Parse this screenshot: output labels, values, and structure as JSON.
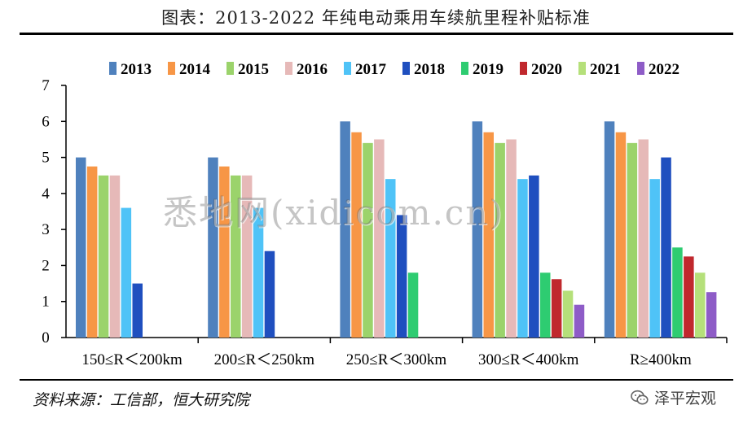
{
  "header": {
    "title": "图表：2013-2022 年纯电动乘用车续航里程补贴标准"
  },
  "footer": {
    "source": "资料来源：工信部，恒大研究院",
    "brand": "泽平宏观",
    "brand_icon": "wechat-icon"
  },
  "watermark": "悉地网(xidicom.cn)",
  "chart_data": {
    "type": "bar",
    "title": "图表：2013-2022 年纯电动乘用车续航里程补贴标准",
    "xlabel": "",
    "ylabel": "",
    "ylim": [
      0,
      7
    ],
    "yticks": [
      "0",
      "1",
      "2",
      "3",
      "4",
      "5",
      "6",
      "7"
    ],
    "grid": false,
    "legend_position": "top",
    "categories": [
      "150≤R＜200km",
      "200≤R＜250km",
      "250≤R＜300km",
      "300≤R＜400km",
      "R≥400km"
    ],
    "series": [
      {
        "name": "2013",
        "color": "#4f81bd",
        "values": [
          5,
          5,
          6,
          6,
          6
        ]
      },
      {
        "name": "2014",
        "color": "#f79646",
        "values": [
          4.75,
          4.75,
          5.7,
          5.7,
          5.7
        ]
      },
      {
        "name": "2015",
        "color": "#9bd36b",
        "values": [
          4.5,
          4.5,
          5.4,
          5.4,
          5.4
        ]
      },
      {
        "name": "2016",
        "color": "#e6b9b8",
        "values": [
          4.5,
          4.5,
          5.5,
          5.5,
          5.5
        ]
      },
      {
        "name": "2017",
        "color": "#4fc3f7",
        "values": [
          3.6,
          3.6,
          4.4,
          4.4,
          4.4
        ]
      },
      {
        "name": "2018",
        "color": "#1f4fbf",
        "values": [
          1.5,
          2.4,
          3.4,
          4.5,
          5
        ]
      },
      {
        "name": "2019",
        "color": "#2ecc71",
        "values": [
          null,
          null,
          1.8,
          1.8,
          2.5
        ]
      },
      {
        "name": "2020",
        "color": "#c0282d",
        "values": [
          null,
          null,
          null,
          1.62,
          2.25
        ]
      },
      {
        "name": "2021",
        "color": "#b5e07a",
        "values": [
          null,
          null,
          null,
          1.3,
          1.8
        ]
      },
      {
        "name": "2022",
        "color": "#8e5cc7",
        "values": [
          null,
          null,
          null,
          0.91,
          1.26
        ]
      }
    ]
  }
}
